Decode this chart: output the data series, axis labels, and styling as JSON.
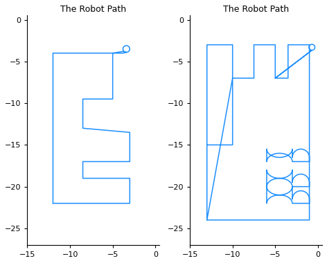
{
  "title": "The Robot Path",
  "xlim": [
    -15,
    0.5
  ],
  "ylim": [
    -27,
    0.5
  ],
  "xticks": [
    -15,
    -10,
    -5,
    0
  ],
  "yticks": [
    0,
    -5,
    -10,
    -15,
    -20,
    -25
  ],
  "line_color": "#1E90FF",
  "line_width": 1.1,
  "figsize": [
    4.72,
    3.8
  ],
  "dpi": 100,
  "bg_color": "#FFFFFF",
  "title_fontsize": 9
}
